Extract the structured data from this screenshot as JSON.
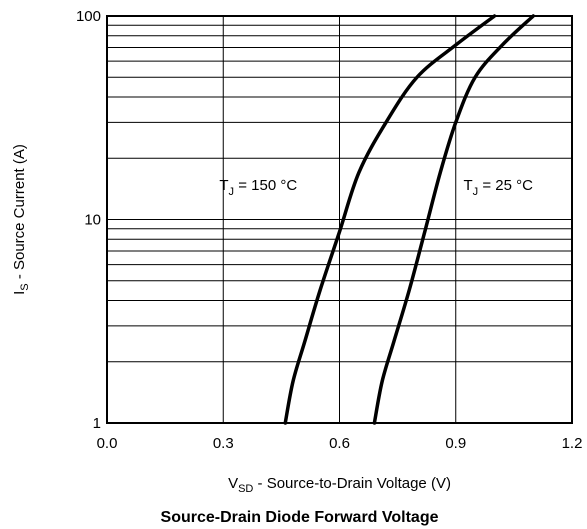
{
  "chart_data": {
    "type": "line",
    "title": "Source-Drain Diode Forward Voltage",
    "xlabel": {
      "main": "V",
      "sub": "SD",
      "rest": " - Source-to-Drain Voltage (V)"
    },
    "ylabel": {
      "main": "I",
      "sub": "S",
      "rest": " - Source Current (A)"
    },
    "xlim": [
      0.0,
      1.2
    ],
    "ylim": [
      1,
      100
    ],
    "y_scale": "log",
    "grid": true,
    "x_ticks": [
      "0.0",
      "0.3",
      "0.6",
      "0.9",
      "1.2"
    ],
    "y_ticks": [
      "1",
      "10",
      "100"
    ],
    "series": [
      {
        "x": [
          0.46,
          0.48,
          0.51,
          0.55,
          0.6,
          0.65,
          0.72,
          0.8,
          0.9,
          1.0
        ],
        "y": [
          1,
          1.6,
          2.5,
          4.5,
          8.7,
          17,
          30,
          50,
          72,
          100
        ]
      },
      {
        "x": [
          0.69,
          0.71,
          0.74,
          0.78,
          0.82,
          0.86,
          0.9,
          0.95,
          1.02,
          1.1
        ],
        "y": [
          1,
          1.6,
          2.5,
          4.5,
          8.7,
          17,
          30,
          50,
          72,
          100
        ]
      }
    ],
    "annotations": [
      {
        "main": "T",
        "sub": "J",
        "rest": " = 150 °C",
        "x": 0.29,
        "y": 14
      },
      {
        "main": "T",
        "sub": "J",
        "rest": " = 25 °C",
        "x": 0.92,
        "y": 14
      }
    ]
  }
}
